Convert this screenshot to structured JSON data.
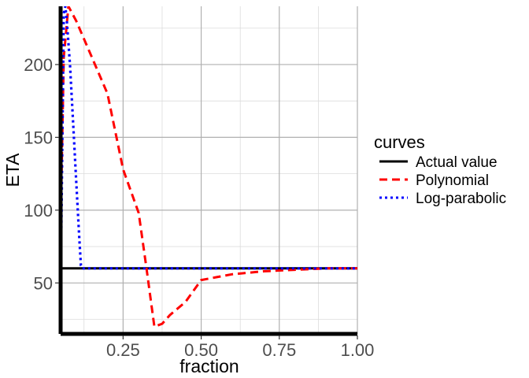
{
  "chart_data": {
    "type": "line",
    "title": "",
    "xlabel": "fraction",
    "ylabel": "ETA",
    "xlim": [
      0.05,
      1.0
    ],
    "ylim": [
      15,
      240
    ],
    "x_ticks": [
      0.25,
      0.5,
      0.75,
      1.0
    ],
    "x_tick_labels": [
      "0.25",
      "0.50",
      "0.75",
      "1.00"
    ],
    "y_ticks": [
      50,
      100,
      150,
      200
    ],
    "y_tick_labels": [
      "50",
      "100",
      "150",
      "200"
    ],
    "grid": true,
    "legend": {
      "title": "curves",
      "position": "right",
      "entries": [
        "Actual value",
        "Polynomial",
        "Log-parabolic"
      ]
    },
    "series": [
      {
        "name": "Actual value",
        "color": "#000000",
        "dash": "solid",
        "x": [
          0.05,
          1.0
        ],
        "y": [
          60,
          60
        ]
      },
      {
        "name": "Polynomial",
        "color": "#ff0000",
        "dash": "dashed",
        "x": [
          0.051,
          0.06,
          0.075,
          0.1,
          0.15,
          0.2,
          0.25,
          0.3,
          0.325,
          0.35,
          0.375,
          0.4,
          0.45,
          0.5,
          0.55,
          0.6,
          0.7,
          0.8,
          0.9,
          1.0
        ],
        "y": [
          100,
          205,
          240,
          230,
          205,
          180,
          128,
          98,
          60,
          20,
          22,
          28,
          37,
          52,
          54,
          56,
          58,
          59,
          60,
          60
        ]
      },
      {
        "name": "Log-parabolic",
        "color": "#0000ff",
        "dash": "dotted",
        "x": [
          0.052,
          0.06,
          0.065,
          0.07,
          0.08,
          0.09,
          0.1,
          0.105,
          0.11,
          0.115,
          0.12,
          0.2,
          0.4,
          0.6,
          0.8,
          1.0
        ],
        "y": [
          80,
          235,
          240,
          230,
          200,
          160,
          120,
          100,
          80,
          62,
          60,
          60,
          60,
          60,
          60,
          60
        ]
      }
    ]
  }
}
